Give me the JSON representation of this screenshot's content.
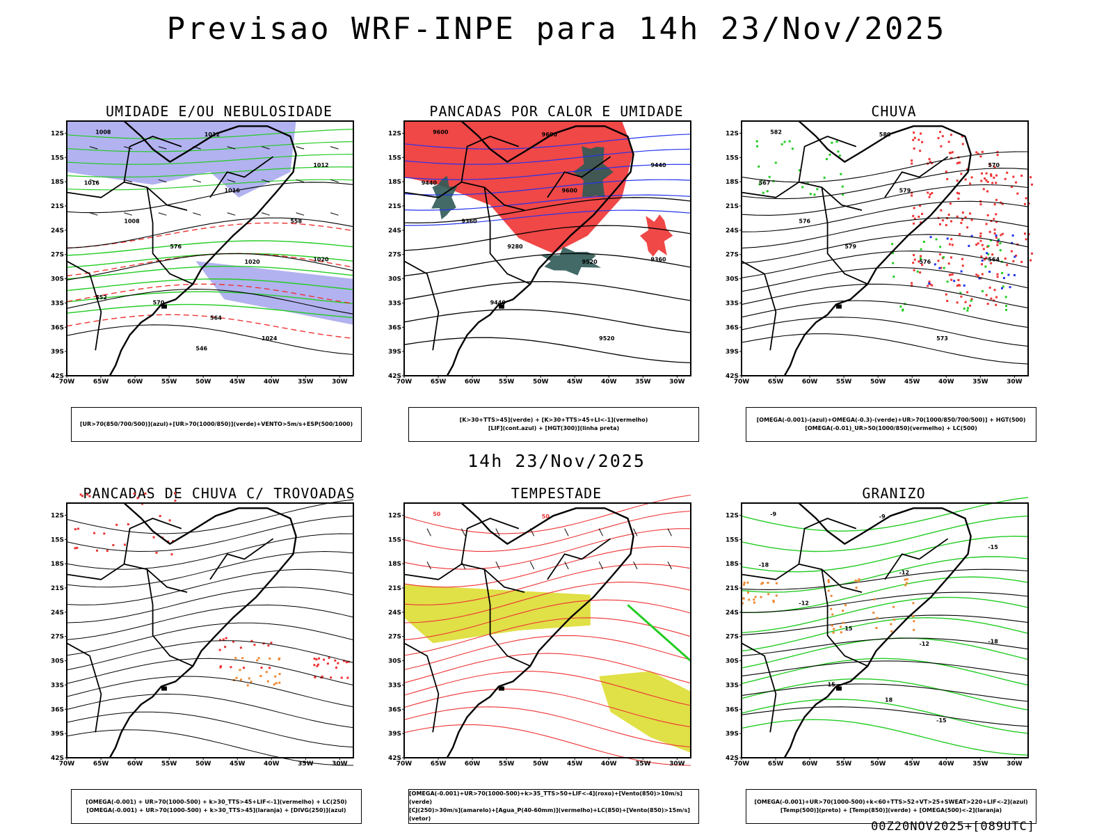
{
  "title": "Previsao WRF-INPE  para 14h 23/Nov/2025",
  "mid_label": "14h 23/Nov/2025",
  "footer": "00Z20NOV2025+[089UTC]",
  "lat_labels": [
    "12S",
    "15S",
    "18S",
    "21S",
    "24S",
    "27S",
    "30S",
    "33S",
    "36S",
    "39S",
    "42S"
  ],
  "lon_labels": [
    "70W",
    "65W",
    "60W",
    "55W",
    "50W",
    "45W",
    "40W",
    "35W",
    "30W"
  ],
  "colors": {
    "green": "#22cc22",
    "red": "#ee3333",
    "blue": "#2233ee",
    "lavender": "#aaaaee",
    "dark_teal": "#2f5a55",
    "yellow": "#dddd33",
    "orange": "#ee8833",
    "black": "#000000"
  },
  "panels": [
    {
      "title": "UMIDADE E/OU NEBULOSIDADE",
      "legend": [
        "[UR>70(850/700/500)](azul)+[UR>70(1000/850)](verde)+VENTO>5m/s+ESP(500/1000)"
      ],
      "labels": [
        "1008",
        "1012",
        "1016",
        "1020",
        "1024",
        "1012",
        "1016",
        "1020",
        "1008",
        "576",
        "570",
        "564",
        "558",
        "552",
        "546"
      ]
    },
    {
      "title": "PANCADAS POR CALOR E UMIDADE",
      "legend": [
        "[K>30+TTS>45](verde) + [K>30+TTS>45+LI<-1](vermelho)",
        "[LIF](cont.azul) + [HGT(300)](linha preta)"
      ],
      "labels": [
        "9600",
        "9600",
        "9600",
        "9520",
        "9520",
        "9440",
        "9440",
        "9360",
        "9360",
        "9280",
        "9440"
      ]
    },
    {
      "title": "CHUVA",
      "legend": [
        "[OMEGA(-0.001)-(azul)+OMEGA(-0.3)-(verde)+UR>70(1000/850/700/500)] + HGT(500)",
        "[OMEGA(-0.01)_UR>50(1000/850)(vermelho) + LC(500)"
      ],
      "labels": [
        "582",
        "580",
        "579",
        "576",
        "573",
        "570",
        "567",
        "564",
        "576",
        "579"
      ]
    },
    {
      "title": "PANCADAS DE CHUVA C/ TROVOADAS",
      "legend": [
        "[OMEGA(-0.001) + UR>70(1000-500) + k>30_TTS>45+LIF<-1](vermelho) + LC(250)",
        "[OMEGA(-0.001) + UR>70(1000-500) + k>30_TTS>45](laranja) + [DIVG(250)](azul)"
      ],
      "labels": []
    },
    {
      "title": "TEMPESTADE",
      "legend": [
        "[OMEGA(-0.001)+UR>70(1000-500)+k>35_TTS>50+LIF<-4](roxo)+[Vento(850)>10m/s](verde)",
        "[CJ(250)>30m/s](amarelo)+[Agua_P(40-60mm)](vermelho)+LC(850)+[Vento(850)>15m/s](vetor)"
      ],
      "labels": [
        "50",
        "50"
      ]
    },
    {
      "title": "GRANIZO",
      "legend": [
        "[OMEGA(-0.001)+UR>70(1000-500)+k<60+TTS>52+VT>25+SWEAT>220+LIF<-2](azul)",
        "[Temp(500)](preto) + [Temp(850)](verde) + [OMEGA(500)<-2](laranja)"
      ],
      "labels": [
        "-9",
        "-9",
        "-12",
        "-12",
        "-15",
        "-15",
        "-18",
        "-18",
        "-12",
        "15",
        "15",
        "18"
      ]
    }
  ]
}
